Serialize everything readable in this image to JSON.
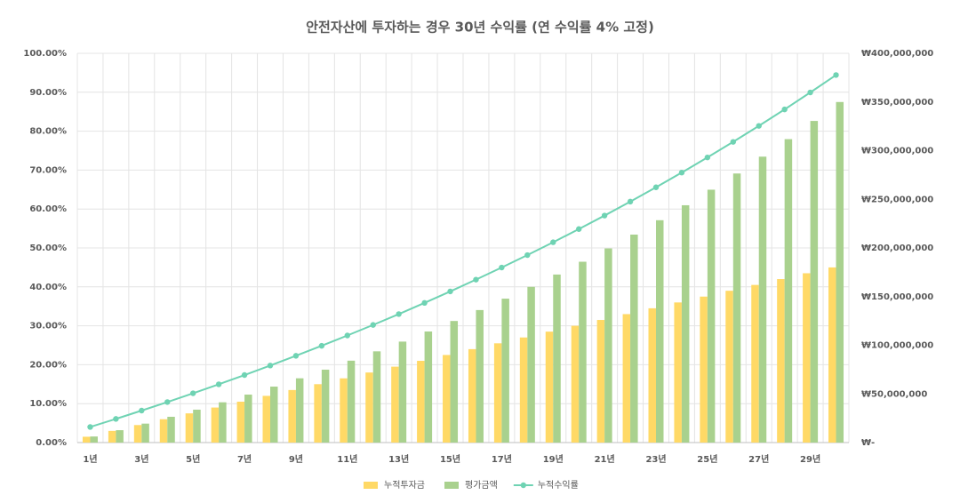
{
  "chart_data": {
    "type": "bar-line",
    "title": "안전자산에 투자하는 경우 30년 수익률 (연 수익률 4% 고정)",
    "categories": [
      "1년",
      null,
      "3년",
      null,
      "5년",
      null,
      "7년",
      null,
      "9년",
      null,
      "11년",
      null,
      "13년",
      null,
      "15년",
      null,
      "17년",
      null,
      "19년",
      null,
      "21년",
      null,
      "23년",
      null,
      "25년",
      null,
      "27년",
      null,
      "29년",
      null
    ],
    "series": [
      {
        "name": "누적투자금",
        "type": "bar",
        "axis": "y2",
        "color": "#ffd966",
        "values": [
          6000000,
          12000000,
          18000000,
          24000000,
          30000000,
          36000000,
          42000000,
          48000000,
          54000000,
          60000000,
          66000000,
          72000000,
          78000000,
          84000000,
          90000000,
          96000000,
          102000000,
          108000000,
          114000000,
          120000000,
          126000000,
          132000000,
          138000000,
          144000000,
          150000000,
          156000000,
          162000000,
          168000000,
          174000000,
          180000000
        ]
      },
      {
        "name": "평가금액",
        "type": "bar",
        "axis": "y2",
        "color": "#a9d18e",
        "values": [
          6240000,
          12730000,
          19480000,
          26500000,
          33800000,
          41390000,
          49290000,
          57500000,
          66040000,
          74920000,
          84150000,
          93760000,
          103750000,
          114140000,
          124950000,
          136180000,
          147870000,
          160030000,
          172670000,
          185820000,
          199490000,
          213710000,
          228500000,
          243880000,
          259870000,
          276510000,
          293810000,
          311800000,
          330510000,
          349970000
        ]
      },
      {
        "name": "누적수익률",
        "type": "line",
        "axis": "y",
        "color": "#6fd3b3",
        "values": [
          4.0,
          6.08,
          8.22,
          10.41,
          12.66,
          14.97,
          17.35,
          19.79,
          22.29,
          24.86,
          27.51,
          30.22,
          33.01,
          35.88,
          38.83,
          41.86,
          44.97,
          48.17,
          51.46,
          54.85,
          58.32,
          61.9,
          65.58,
          69.36,
          73.25,
          77.25,
          81.36,
          85.59,
          89.95,
          94.43
        ]
      }
    ],
    "ylim": [
      0,
      100
    ],
    "yticks": [
      {
        "value": 0,
        "label": "0.00%"
      },
      {
        "value": 10,
        "label": "10.00%"
      },
      {
        "value": 20,
        "label": "20.00%"
      },
      {
        "value": 30,
        "label": "30.00%"
      },
      {
        "value": 40,
        "label": "40.00%"
      },
      {
        "value": 50,
        "label": "50.00%"
      },
      {
        "value": 60,
        "label": "60.00%"
      },
      {
        "value": 70,
        "label": "70.00%"
      },
      {
        "value": 80,
        "label": "80.00%"
      },
      {
        "value": 90,
        "label": "90.00%"
      },
      {
        "value": 100,
        "label": "100.00%"
      }
    ],
    "y2lim": [
      0,
      400000000
    ],
    "y2ticks": [
      {
        "value": 0,
        "label": "₩-"
      },
      {
        "value": 50000000,
        "label": "₩50,000,000"
      },
      {
        "value": 100000000,
        "label": "₩100,000,000"
      },
      {
        "value": 150000000,
        "label": "₩150,000,000"
      },
      {
        "value": 200000000,
        "label": "₩200,000,000"
      },
      {
        "value": 250000000,
        "label": "₩250,000,000"
      },
      {
        "value": 300000000,
        "label": "₩300,000,000"
      },
      {
        "value": 350000000,
        "label": "₩350,000,000"
      },
      {
        "value": 400000000,
        "label": "₩400,000,000"
      }
    ],
    "grid": true,
    "legend": "bottom"
  }
}
